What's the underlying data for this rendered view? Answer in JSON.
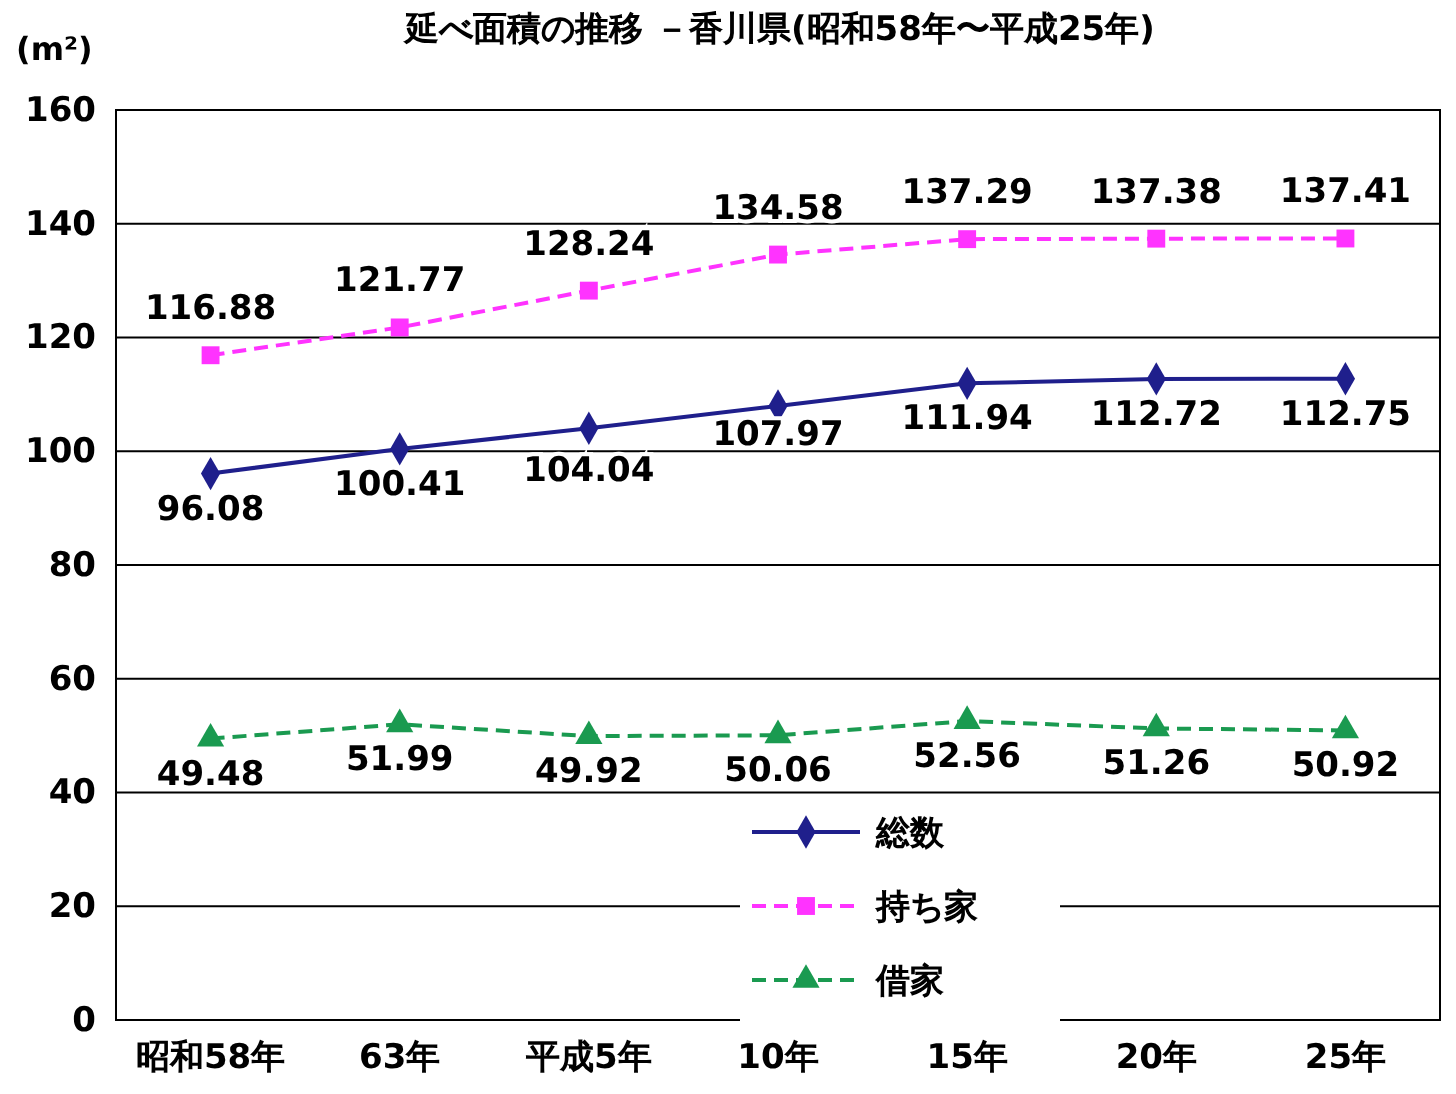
{
  "chart_data": {
    "type": "line",
    "title": "延べ面積の推移 －香川県(昭和58年〜平成25年)",
    "ylabel": "(m²)",
    "categories": [
      "昭和58年",
      "63年",
      "平成5年",
      "10年",
      "15年",
      "20年",
      "25年"
    ],
    "series": [
      {
        "name": "総数",
        "color": "#1f1f8c",
        "marker": "diamond",
        "line_style": "solid",
        "values": [
          96.08,
          100.41,
          104.04,
          107.97,
          111.94,
          112.72,
          112.75
        ]
      },
      {
        "name": "持ち家",
        "color": "#ff33ff",
        "marker": "square",
        "line_style": "dashed",
        "values": [
          116.88,
          121.77,
          128.24,
          134.58,
          137.29,
          137.38,
          137.41
        ]
      },
      {
        "name": "借家",
        "color": "#1a9a50",
        "marker": "triangle",
        "line_style": "dashed",
        "values": [
          49.48,
          51.99,
          49.92,
          50.06,
          52.56,
          51.26,
          50.92
        ]
      }
    ],
    "ylim": [
      0,
      160
    ],
    "yticks": [
      0,
      20,
      40,
      60,
      80,
      100,
      120,
      140,
      160
    ],
    "grid": "y",
    "legend": "bottom",
    "data_labels": true
  }
}
